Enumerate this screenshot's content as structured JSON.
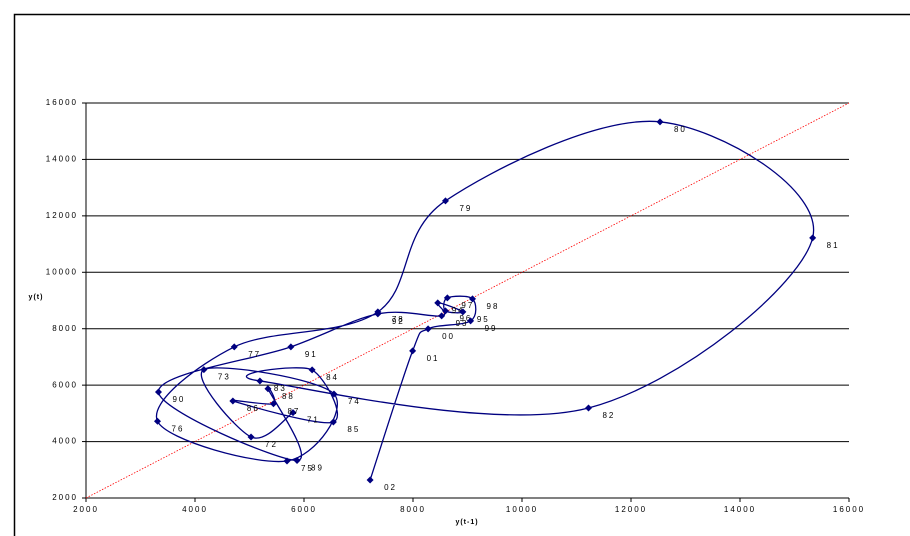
{
  "chart_data": {
    "type": "scatter-line",
    "y_label": "y(t)",
    "x_label": "y(t-1)",
    "xlim": [
      2000,
      16000
    ],
    "ylim": [
      2000,
      16000
    ],
    "xticks": [
      2000,
      4000,
      6000,
      8000,
      10000,
      12000,
      14000,
      16000
    ],
    "yticks": [
      2000,
      4000,
      6000,
      8000,
      10000,
      12000,
      14000,
      16000
    ],
    "grid": true,
    "diagonal_color": "#ff0000",
    "series": [
      {
        "color": "#000080",
        "labels": [
          "71",
          "72",
          "73",
          "74",
          "75",
          "76",
          "77",
          "78",
          "79",
          "80",
          "81",
          "82",
          "83",
          "84",
          "85",
          "86",
          "87",
          "88",
          "89",
          "90",
          "91",
          "92",
          "93",
          "94",
          "95",
          "96",
          "97",
          "98",
          "99",
          "00",
          "01",
          "02"
        ],
        "x": [
          5798,
          5028,
          4163,
          6550,
          5688,
          3312,
          4720,
          7355,
          8596,
          12532,
          15333,
          11220,
          5191,
          6149,
          6539,
          4695,
          5440,
          5339,
          5872,
          3330,
          5759,
          7355,
          8525,
          8454,
          8915,
          8596,
          8631,
          9092,
          9057,
          8277,
          7993,
          7213
        ],
        "values": [
          5028,
          4163,
          6550,
          5688,
          3312,
          4720,
          7355,
          8596,
          12532,
          15333,
          11220,
          5191,
          6149,
          6539,
          4695,
          5440,
          5339,
          5872,
          3330,
          5759,
          7355,
          8525,
          8454,
          8915,
          8596,
          8631,
          9092,
          9057,
          8277,
          7993,
          7213,
          2638
        ]
      }
    ]
  }
}
